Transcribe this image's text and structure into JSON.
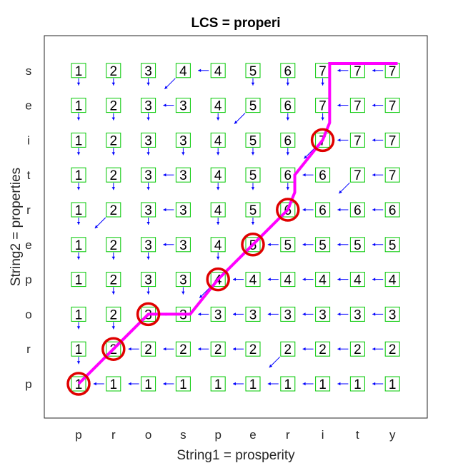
{
  "title": "LCS = properi",
  "xlabel": "String1 = prosperity",
  "ylabel": "String2 = properties",
  "colors": {
    "box": "#00c800",
    "arrow": "#0000ff",
    "path": "#ff00ff",
    "circle": "#e00000"
  },
  "chart_data": {
    "type": "dp-table",
    "string1": [
      "p",
      "r",
      "o",
      "s",
      "p",
      "e",
      "r",
      "i",
      "t",
      "y"
    ],
    "string2_bottom_to_top": [
      "p",
      "r",
      "o",
      "p",
      "e",
      "r",
      "t",
      "i",
      "e",
      "s"
    ],
    "values_bottom_to_top": [
      [
        1,
        1,
        1,
        1,
        1,
        1,
        1,
        1,
        1,
        1
      ],
      [
        1,
        2,
        2,
        2,
        2,
        2,
        2,
        2,
        2,
        2
      ],
      [
        1,
        2,
        3,
        3,
        3,
        3,
        3,
        3,
        3,
        3
      ],
      [
        1,
        2,
        3,
        3,
        4,
        4,
        4,
        4,
        4,
        4
      ],
      [
        1,
        2,
        3,
        3,
        4,
        5,
        5,
        5,
        5,
        5
      ],
      [
        1,
        2,
        3,
        3,
        4,
        5,
        6,
        6,
        6,
        6
      ],
      [
        1,
        2,
        3,
        3,
        4,
        5,
        6,
        6,
        7,
        7
      ],
      [
        1,
        2,
        3,
        3,
        4,
        5,
        6,
        7,
        7,
        7
      ],
      [
        1,
        2,
        3,
        3,
        4,
        5,
        6,
        7,
        7,
        7
      ],
      [
        1,
        2,
        3,
        4,
        4,
        5,
        6,
        7,
        7,
        7
      ]
    ],
    "arrows_bottom_to_top": [
      [
        "",
        "L",
        "L",
        "L",
        "",
        "L",
        "L",
        "L",
        "L",
        "L"
      ],
      [
        "D",
        "",
        "L",
        "L",
        "L",
        "L",
        "",
        "L",
        "L",
        "L"
      ],
      [
        "D",
        "D",
        "",
        "L",
        "L",
        "L",
        "L",
        "L",
        "L",
        "L"
      ],
      [
        "",
        "D",
        "D",
        "D",
        "",
        "L",
        "L",
        "L",
        "L",
        "L"
      ],
      [
        "D",
        "D",
        "D",
        "L",
        "D",
        "",
        "L",
        "L",
        "L",
        "L"
      ],
      [
        "D",
        "",
        "D",
        "L",
        "D",
        "D",
        "",
        "L",
        "L",
        "L"
      ],
      [
        "D",
        "D",
        "D",
        "L",
        "D",
        "D",
        "D",
        "L",
        "",
        "L"
      ],
      [
        "D",
        "D",
        "D",
        "D",
        "D",
        "D",
        "D",
        "",
        "L",
        "L"
      ],
      [
        "D",
        "D",
        "D",
        "L",
        "D",
        "",
        "D",
        "D",
        "L",
        "L"
      ],
      [
        "D",
        "D",
        "D",
        "",
        "L",
        "D",
        "D",
        "D",
        "L",
        "L"
      ]
    ],
    "matches": [
      [
        0,
        0
      ],
      [
        1,
        1
      ],
      [
        2,
        2
      ],
      [
        4,
        3
      ],
      [
        5,
        4
      ],
      [
        6,
        5
      ],
      [
        7,
        7
      ]
    ],
    "path": [
      [
        0,
        0
      ],
      [
        1,
        1
      ],
      [
        2,
        2
      ],
      [
        3.2,
        2
      ],
      [
        4,
        3
      ],
      [
        5,
        4
      ],
      [
        6,
        5
      ],
      [
        6.2,
        5.5
      ],
      [
        6.2,
        6
      ],
      [
        7,
        7
      ],
      [
        7.2,
        7.5
      ],
      [
        7.2,
        9.2
      ],
      [
        9.15,
        9.2
      ]
    ],
    "xlim": [
      -1,
      10
    ],
    "ylim": [
      -1,
      10
    ]
  }
}
